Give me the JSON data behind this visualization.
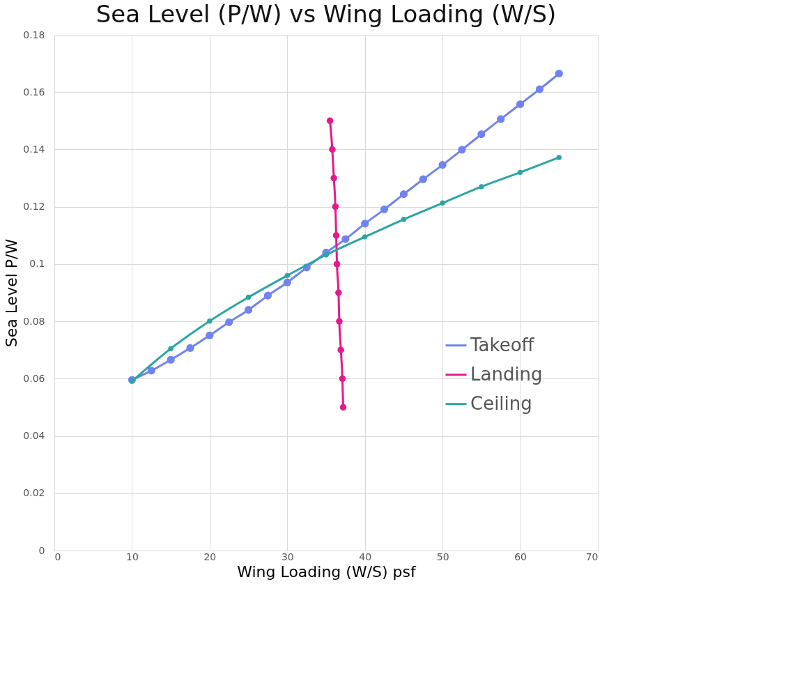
{
  "chart_data": {
    "type": "line",
    "title": "Sea Level (P/W) vs Wing Loading (W/S)",
    "xlabel": "Wing Loading (W/S) psf",
    "ylabel": "Sea Level P/W",
    "xlim": [
      0,
      70
    ],
    "xticks": [
      0,
      10,
      20,
      30,
      40,
      50,
      60,
      70
    ],
    "ylim": [
      0,
      0.18
    ],
    "yticks": [
      0,
      0.02,
      0.04,
      0.06,
      0.08,
      0.1,
      0.12,
      0.14,
      0.16,
      0.18
    ],
    "grid": true,
    "legend": "right",
    "marker": "circle",
    "line_style": "solid",
    "series": [
      {
        "name": "Takeoff",
        "color": "#7083f0",
        "x": [
          10,
          12.5,
          15,
          17.5,
          20,
          22.5,
          25,
          27.5,
          30,
          32.5,
          35,
          37.5,
          40,
          42.5,
          45,
          47.5,
          50,
          52.5,
          55,
          57.5,
          60,
          62.5,
          65
        ],
        "values": [
          0.0596,
          0.0628,
          0.0666,
          0.0707,
          0.0751,
          0.0797,
          0.084,
          0.089,
          0.0936,
          0.0988,
          0.104,
          0.1087,
          0.1141,
          0.1191,
          0.1244,
          0.1296,
          0.1346,
          0.1399,
          0.1453,
          0.1506,
          0.1558,
          0.161,
          0.1665
        ]
      },
      {
        "name": "Landing",
        "color": "#e6198c",
        "x": [
          35.5,
          35.8,
          36.0,
          36.2,
          36.3,
          36.4,
          36.6,
          36.7,
          36.9,
          37.1,
          37.2
        ],
        "values": [
          0.15,
          0.14,
          0.13,
          0.12,
          0.11,
          0.1,
          0.09,
          0.08,
          0.07,
          0.06,
          0.05
        ]
      },
      {
        "name": "Ceiling",
        "color": "#2aa5a0",
        "x": [
          10,
          15,
          20,
          25,
          30,
          35,
          40,
          45,
          50,
          55,
          60,
          65
        ],
        "values": [
          0.0591,
          0.0705,
          0.0801,
          0.0884,
          0.096,
          0.1032,
          0.1095,
          0.1156,
          0.1213,
          0.127,
          0.132,
          0.1372
        ]
      }
    ]
  }
}
